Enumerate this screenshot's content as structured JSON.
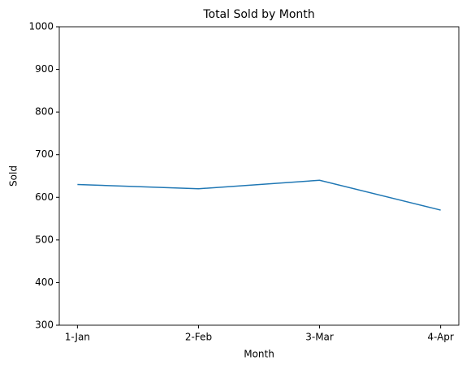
{
  "chart_data": {
    "type": "line",
    "title": "Total Sold by Month",
    "x_label": "Month",
    "y_label": "Sold",
    "categories": [
      "1-Jan",
      "2-Feb",
      "3-Mar",
      "4-Apr"
    ],
    "values": [
      630,
      620,
      640,
      570
    ],
    "color": "#1f77b4",
    "ylim": [
      300,
      1000
    ],
    "yticks": [
      300,
      400,
      500,
      600,
      700,
      800,
      900,
      1000
    ],
    "grid": false
  }
}
